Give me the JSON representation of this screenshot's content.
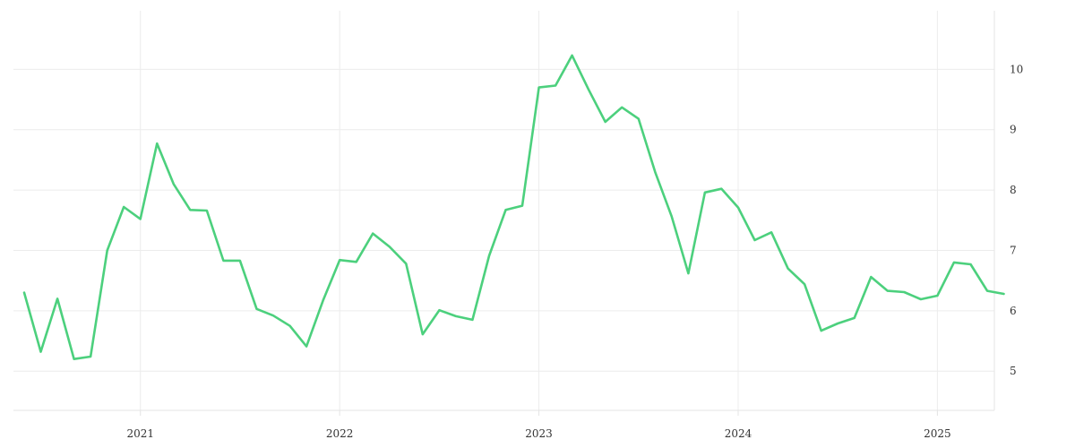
{
  "chart_data": {
    "type": "line",
    "title": "",
    "xlabel": "",
    "ylabel": "",
    "x_axis": {
      "ticks": [
        "2021",
        "2022",
        "2023",
        "2024",
        "2025"
      ],
      "range": [
        "2020-06",
        "2025-04"
      ]
    },
    "y_axis": {
      "ticks": [
        5,
        6,
        7,
        8,
        9,
        10
      ],
      "position": "right",
      "range": [
        4.35,
        10.97
      ]
    },
    "grid": true,
    "legend": "none",
    "series": [
      {
        "color": "#4cd07d",
        "points": [
          [
            "2020-06",
            6.3
          ],
          [
            "2020-07",
            5.32
          ],
          [
            "2020-08",
            6.2
          ],
          [
            "2020-09",
            5.2
          ],
          [
            "2020-10",
            5.24
          ],
          [
            "2020-11",
            7.0
          ],
          [
            "2020-12",
            7.72
          ],
          [
            "2021-01",
            7.52
          ],
          [
            "2021-02",
            8.77
          ],
          [
            "2021-03",
            8.1
          ],
          [
            "2021-04",
            7.67
          ],
          [
            "2021-05",
            7.66
          ],
          [
            "2021-06",
            6.83
          ],
          [
            "2021-07",
            6.83
          ],
          [
            "2021-08",
            6.03
          ],
          [
            "2021-09",
            5.92
          ],
          [
            "2021-10",
            5.75
          ],
          [
            "2021-11",
            5.41
          ],
          [
            "2021-12",
            6.17
          ],
          [
            "2022-01",
            6.84
          ],
          [
            "2022-02",
            6.81
          ],
          [
            "2022-03",
            7.28
          ],
          [
            "2022-04",
            7.06
          ],
          [
            "2022-05",
            6.78
          ],
          [
            "2022-06",
            5.61
          ],
          [
            "2022-07",
            6.01
          ],
          [
            "2022-08",
            5.91
          ],
          [
            "2022-09",
            5.85
          ],
          [
            "2022-10",
            6.91
          ],
          [
            "2022-11",
            7.67
          ],
          [
            "2022-12",
            7.74
          ],
          [
            "2023-01",
            9.7
          ],
          [
            "2023-02",
            9.73
          ],
          [
            "2023-03",
            10.23
          ],
          [
            "2023-04",
            9.66
          ],
          [
            "2023-05",
            9.13
          ],
          [
            "2023-06",
            9.37
          ],
          [
            "2023-07",
            9.18
          ],
          [
            "2023-08",
            8.3
          ],
          [
            "2023-09",
            7.56
          ],
          [
            "2023-10",
            6.62
          ],
          [
            "2023-11",
            7.96
          ],
          [
            "2023-12",
            8.02
          ],
          [
            "2024-01",
            7.71
          ],
          [
            "2024-02",
            7.17
          ],
          [
            "2024-03",
            7.3
          ],
          [
            "2024-04",
            6.7
          ],
          [
            "2024-05",
            6.44
          ],
          [
            "2024-06",
            5.67
          ],
          [
            "2024-07",
            5.79
          ],
          [
            "2024-08",
            5.88
          ],
          [
            "2024-09",
            6.56
          ],
          [
            "2024-10",
            6.33
          ],
          [
            "2024-11",
            6.31
          ],
          [
            "2024-12",
            6.19
          ],
          [
            "2025-01",
            6.25
          ],
          [
            "2025-02",
            6.8
          ],
          [
            "2025-03",
            6.77
          ],
          [
            "2025-04",
            6.33
          ],
          [
            "2025-05",
            6.28
          ]
        ]
      }
    ]
  }
}
